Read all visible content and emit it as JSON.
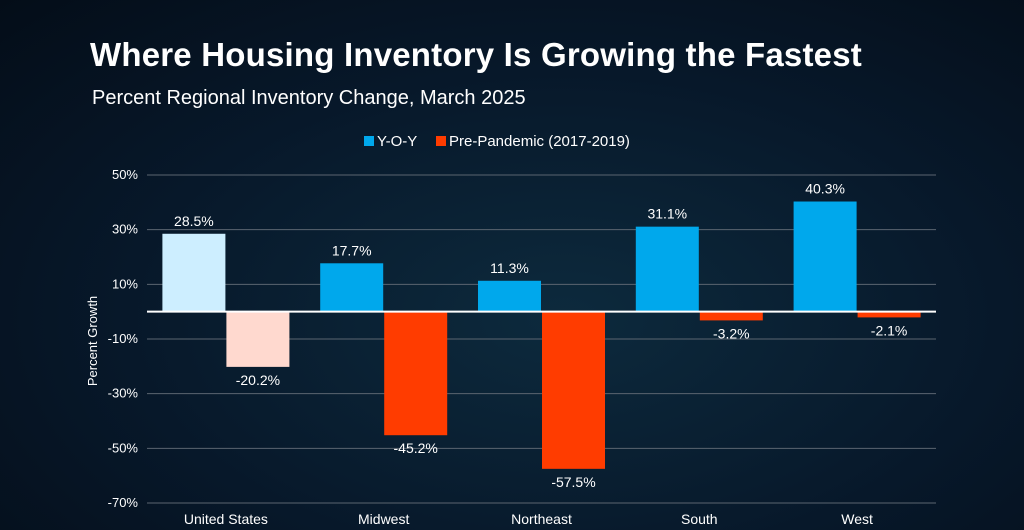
{
  "title": "Where Housing Inventory Is Growing the Fastest",
  "subtitle": "Percent Regional Inventory Change, March 2025",
  "chart_data": {
    "type": "bar",
    "categories": [
      "United States",
      "Midwest",
      "Northeast",
      "South",
      "West"
    ],
    "series": [
      {
        "name": "Y-O-Y",
        "color": "#00a8ec",
        "highlight_first_color": "#cdeeff",
        "values": [
          28.5,
          17.7,
          11.3,
          31.1,
          40.3
        ],
        "labels": [
          "28.5%",
          "17.7%",
          "11.3%",
          "31.1%",
          "40.3%"
        ]
      },
      {
        "name": "Pre-Pandemic (2017-2019)",
        "color": "#ff3c00",
        "highlight_first_color": "#ffd9cf",
        "values": [
          -20.2,
          -45.2,
          -57.5,
          -3.2,
          -2.1
        ],
        "labels": [
          "-20.2%",
          "-45.2%",
          "-57.5%",
          "-3.2%",
          "-2.1%"
        ]
      }
    ],
    "ylabel": "Percent Growth",
    "ylim": [
      -70,
      50
    ],
    "yticks": [
      50,
      30,
      10,
      -10,
      -30,
      -50,
      -70
    ],
    "ytick_labels": [
      "50%",
      "30%",
      "10%",
      "-10%",
      "-30%",
      "-50%",
      "-70%"
    ],
    "grid": true,
    "legend_position": "top"
  }
}
